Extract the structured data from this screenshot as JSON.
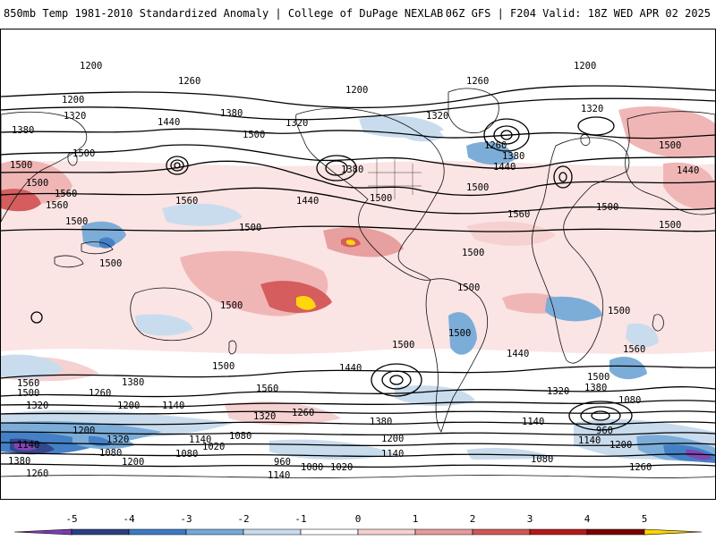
{
  "header": {
    "left_title": "850mb Temp 1981-2010 Standardized Anomaly | College of DuPage NEXLAB",
    "right_title": "06Z GFS | F204 Valid: 18Z WED APR 02 2025"
  },
  "colorbar": {
    "tick_labels": [
      "-5",
      "-4",
      "-3",
      "-2",
      "-1",
      "0",
      "1",
      "2",
      "3",
      "4",
      "5"
    ],
    "colors": [
      "#7d3cb0",
      "#2b3f86",
      "#3a7ac4",
      "#76a9d8",
      "#c7dbee",
      "#ffffff",
      "#f5cfcf",
      "#e79a9a",
      "#d35555",
      "#b31a1a",
      "#7a0000",
      "#ffd400"
    ]
  },
  "map": {
    "contour_labels": [
      "1200",
      "1260",
      "1200",
      "1380",
      "1320",
      "1500",
      "1440",
      "1380",
      "1320",
      "1500",
      "1500",
      "1560",
      "1500",
      "1500",
      "1440",
      "1380",
      "1500",
      "1500",
      "1200",
      "1260",
      "1320",
      "1260",
      "1380",
      "1440",
      "1500",
      "1560",
      "1500",
      "1500",
      "1320",
      "1200",
      "1500",
      "1440",
      "1500",
      "1500",
      "1500",
      "1500",
      "1560",
      "1500",
      "1440",
      "1560",
      "1500",
      "1500",
      "1440",
      "1380",
      "1260",
      "1200",
      "1140",
      "1320",
      "1260",
      "1380",
      "1200",
      "1140",
      "1080",
      "1020",
      "960",
      "1080",
      "1140",
      "1200",
      "1140",
      "1080",
      "1020",
      "1500",
      "1380",
      "1320",
      "1080",
      "1140",
      "960",
      "1200",
      "1140",
      "1080",
      "1260",
      "1560",
      "1560",
      "1500",
      "1320",
      "1080",
      "1140",
      "1320",
      "1200",
      "1380",
      "1260",
      "1560",
      "1500",
      "1560"
    ],
    "colors": {
      "land_outline": "#111111",
      "contour": "#000000"
    }
  }
}
